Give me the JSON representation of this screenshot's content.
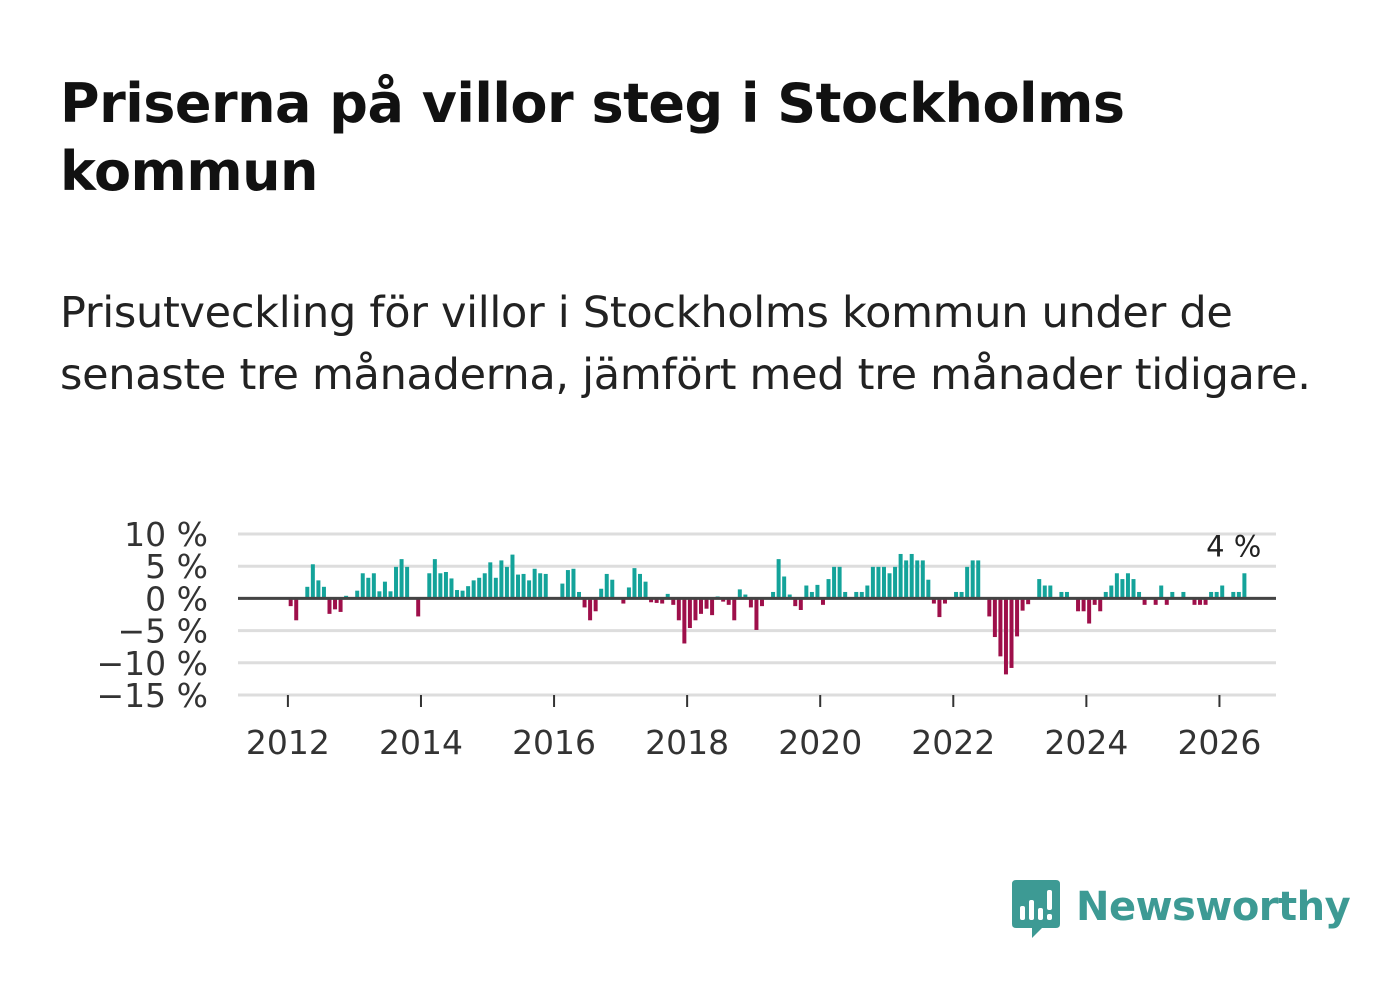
{
  "title": "Priserna på villor steg i Stockholms kommun",
  "subtitle": "Prisutveckling för villor i Stockholms kommun under de senaste tre månaderna, jämfört med tre månader tidigare.",
  "brand": "Newsworthy",
  "colors": {
    "positive": "#14a39a",
    "negative": "#9e0f4a",
    "grid": "#dddddd",
    "zero": "#444444",
    "brand": "#3d9a94"
  },
  "chart_data": {
    "type": "bar",
    "title": "Prisutveckling för villor i Stockholms kommun",
    "xlabel": "",
    "ylabel": "",
    "ylim": [
      -15,
      10
    ],
    "y_ticks": [
      10,
      5,
      0,
      -5,
      -10,
      -15
    ],
    "y_tick_labels": [
      "10 %",
      "5 %",
      "0 %",
      "−5 %",
      "−10 %",
      "−15 %"
    ],
    "x_ticks": [
      2012,
      2014,
      2016,
      2018,
      2020,
      2022,
      2024,
      2026
    ],
    "x_tick_labels": [
      "2012",
      "2014",
      "2016",
      "2018",
      "2020",
      "2022",
      "2024",
      "2026"
    ],
    "start": "2012-01",
    "end": "2026-03",
    "annotation": {
      "label": "4 %",
      "period": "2026-03"
    },
    "values": [
      -1.2,
      -3.4,
      0.1,
      1.8,
      5.3,
      2.8,
      1.8,
      -2.4,
      -1.7,
      -2.1,
      0.4,
      0.2,
      1.2,
      3.9,
      3.2,
      3.9,
      1.1,
      2.6,
      1.1,
      4.9,
      6.1,
      4.9,
      0.2,
      -2.8,
      0.2,
      3.9,
      6.1,
      3.9,
      4.1,
      3.1,
      1.3,
      1.2,
      1.9,
      2.8,
      3.2,
      3.9,
      5.6,
      3.2,
      5.9,
      4.9,
      6.8,
      3.7,
      3.8,
      2.8,
      4.6,
      3.9,
      3.8,
      0.1,
      0.1,
      2.3,
      4.4,
      4.6,
      1.0,
      -1.4,
      -3.4,
      -2.0,
      1.5,
      3.8,
      2.9,
      0.1,
      -0.8,
      1.7,
      4.7,
      3.8,
      2.6,
      -0.6,
      -0.7,
      -0.8,
      0.7,
      -1.0,
      -3.4,
      -7.0,
      -4.6,
      -3.4,
      -2.4,
      -1.6,
      -2.6,
      0.3,
      -0.5,
      -1.0,
      -3.4,
      1.4,
      0.6,
      -1.4,
      -4.9,
      -1.2,
      0.1,
      1.0,
      6.1,
      3.4,
      0.6,
      -1.2,
      -1.8,
      2.0,
      1.0,
      2.1,
      -1.0,
      3.0,
      4.9,
      4.9,
      1.0,
      0.2,
      1.0,
      1.0,
      2.0,
      4.9,
      4.9,
      4.9,
      3.9,
      4.9,
      6.9,
      5.9,
      6.9,
      5.9,
      5.9,
      2.9,
      -0.8,
      -2.9,
      -0.8,
      0.2,
      1.0,
      1.0,
      4.9,
      5.9,
      5.9,
      0.1,
      -2.8,
      -6.0,
      -9.0,
      -11.8,
      -10.8,
      -5.9,
      -1.9,
      -0.9,
      0.1,
      3.0,
      2.0,
      2.0,
      0.1,
      1.0,
      1.0,
      0.1,
      -2.0,
      -2.0,
      -3.9,
      -1.0,
      -2.0,
      1.0,
      2.0,
      3.9,
      3.0,
      3.9,
      3.0,
      1.0,
      -1.0,
      0.1,
      -1.0,
      2.0,
      -1.0,
      1.0,
      0.1,
      1.0,
      0.1,
      -1.0,
      -1.0,
      -1.0,
      1.0,
      1.0,
      2.0,
      0.1,
      1.0,
      1.0,
      3.9
    ]
  }
}
